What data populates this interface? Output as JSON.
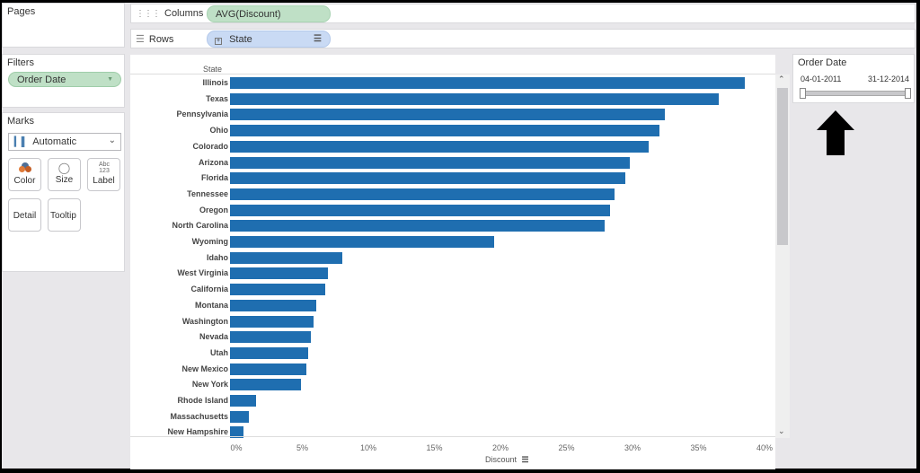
{
  "pages": {
    "title": "Pages"
  },
  "shelves": {
    "columns": {
      "label": "Columns",
      "pill": "AVG(Discount)"
    },
    "rows": {
      "label": "Rows",
      "pill": "State"
    }
  },
  "filters": {
    "title": "Filters",
    "pill": "Order Date"
  },
  "marks": {
    "title": "Marks",
    "type": "Automatic",
    "buttons": {
      "color": "Color",
      "size": "Size",
      "label": "Label",
      "label_icon": "Abc 123",
      "detail": "Detail",
      "tooltip": "Tooltip"
    }
  },
  "order_date_filter": {
    "title": "Order Date",
    "start": "04-01-2011",
    "end": "31-12-2014"
  },
  "chart_data": {
    "type": "bar",
    "orientation": "horizontal",
    "title": "",
    "ylabel": "State",
    "xlabel": "Discount",
    "categories": [
      "Illinois",
      "Texas",
      "Pennsylvania",
      "Ohio",
      "Colorado",
      "Arizona",
      "Florida",
      "Tennessee",
      "Oregon",
      "North Carolina",
      "Wyoming",
      "Idaho",
      "West Virginia",
      "California",
      "Montana",
      "Washington",
      "Nevada",
      "Utah",
      "New Mexico",
      "New York",
      "Rhode Island",
      "Massachusetts",
      "New Hampshire"
    ],
    "values": [
      39.0,
      37.0,
      32.9,
      32.5,
      31.7,
      30.3,
      29.9,
      29.1,
      28.8,
      28.4,
      20.0,
      8.5,
      7.4,
      7.2,
      6.5,
      6.3,
      6.1,
      5.9,
      5.8,
      5.4,
      2.0,
      1.4,
      1.0
    ],
    "value_format": "percent",
    "xlim": [
      0,
      40
    ],
    "xticks": [
      "0%",
      "5%",
      "10%",
      "15%",
      "20%",
      "25%",
      "30%",
      "35%",
      "40%"
    ],
    "color": "#1f6eb0",
    "grid": false,
    "sorted": "descending"
  }
}
